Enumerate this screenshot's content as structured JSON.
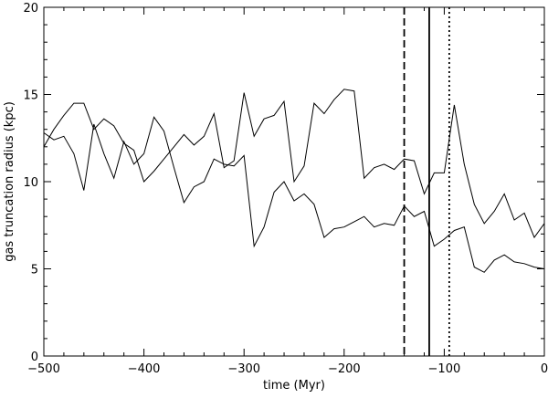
{
  "chart_data": {
    "type": "line",
    "xlabel": "time (Myr)",
    "ylabel": "gas truncation radius (kpc)",
    "xlim": [
      -500,
      0
    ],
    "ylim": [
      0,
      20
    ],
    "x_ticks": [
      -500,
      -400,
      -300,
      -200,
      -100,
      0
    ],
    "y_ticks": [
      0,
      5,
      10,
      15,
      20
    ],
    "grid": false,
    "series": [
      {
        "x": [
          -500,
          -490,
          -480,
          -470,
          -460,
          -450,
          -440,
          -430,
          -420,
          -410,
          -400,
          -390,
          -380,
          -370,
          -360,
          -350,
          -340,
          -330,
          -320,
          -310,
          -300,
          -290,
          -280,
          -270,
          -260,
          -250,
          -240,
          -230,
          -220,
          -210,
          -200,
          -190,
          -180,
          -170,
          -160,
          -150,
          -140,
          -130,
          -120,
          -110,
          -100,
          -90,
          -80,
          -70,
          -60,
          -50,
          -40,
          -30,
          -20,
          -10,
          0
        ],
        "y": [
          12.0,
          13.0,
          13.8,
          14.5,
          14.5,
          13.0,
          13.6,
          13.2,
          12.2,
          11.8,
          10.0,
          10.6,
          11.3,
          12.0,
          12.7,
          12.1,
          12.6,
          13.9,
          10.8,
          11.2,
          15.1,
          12.6,
          13.6,
          13.8,
          14.6,
          10.0,
          10.9,
          14.5,
          13.9,
          14.7,
          15.3,
          15.2,
          10.2,
          10.8,
          11.0,
          10.7,
          11.3,
          11.2,
          9.3,
          10.5,
          10.5,
          14.4,
          11.0,
          8.7,
          7.6,
          8.3,
          9.3,
          7.8,
          8.2,
          6.8,
          7.6
        ]
      },
      {
        "x": [
          -500,
          -490,
          -480,
          -470,
          -460,
          -450,
          -440,
          -430,
          -420,
          -410,
          -400,
          -390,
          -380,
          -370,
          -360,
          -350,
          -340,
          -330,
          -320,
          -310,
          -300,
          -290,
          -280,
          -270,
          -260,
          -250,
          -240,
          -230,
          -220,
          -210,
          -200,
          -190,
          -180,
          -170,
          -160,
          -150,
          -140,
          -130,
          -120,
          -110,
          -100,
          -90,
          -80,
          -70,
          -60,
          -50,
          -40,
          -30,
          -20,
          -10,
          0
        ],
        "y": [
          12.8,
          12.4,
          12.6,
          11.6,
          9.5,
          13.3,
          11.6,
          10.2,
          12.3,
          11.0,
          11.6,
          13.7,
          12.9,
          10.8,
          8.8,
          9.7,
          10.0,
          11.3,
          11.0,
          10.9,
          11.5,
          6.3,
          7.4,
          9.4,
          10.0,
          8.9,
          9.3,
          8.7,
          6.8,
          7.3,
          7.4,
          7.7,
          8.0,
          7.4,
          7.6,
          7.5,
          8.6,
          8.0,
          8.3,
          6.3,
          6.7,
          7.2,
          7.4,
          5.1,
          4.8,
          5.5,
          5.8,
          5.4,
          5.3,
          5.1,
          5.0
        ]
      }
    ],
    "vlines": [
      {
        "x": -140,
        "style": "dashed"
      },
      {
        "x": -115,
        "style": "solid"
      },
      {
        "x": -95,
        "style": "dotted"
      }
    ]
  }
}
